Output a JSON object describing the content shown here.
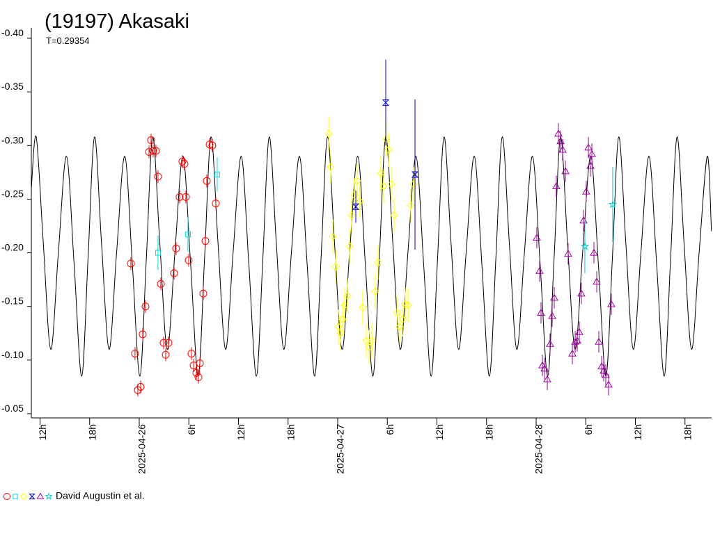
{
  "chart_data": {
    "type": "scatter",
    "title": "(19197) Akasaki",
    "subtitle": "T=0.29354",
    "legend_label": "David Augustin et al.",
    "xlim": [
      10.95,
      93.22
    ],
    "ylim": [
      -0.05,
      -0.4
    ],
    "xticks": [
      {
        "value": 12,
        "label": "12h"
      },
      {
        "value": 18,
        "label": "18h"
      },
      {
        "value": 24,
        "label": "2025-04-26"
      },
      {
        "value": 30,
        "label": "6h"
      },
      {
        "value": 36,
        "label": "12h"
      },
      {
        "value": 42,
        "label": "18h"
      },
      {
        "value": 48,
        "label": "2025-04-27"
      },
      {
        "value": 54,
        "label": "6h"
      },
      {
        "value": 60,
        "label": "12h"
      },
      {
        "value": 66,
        "label": "18h"
      },
      {
        "value": 72,
        "label": "2025-04-28"
      },
      {
        "value": 78,
        "label": "6h"
      },
      {
        "value": 84,
        "label": "12h"
      },
      {
        "value": 90,
        "label": "18h"
      }
    ],
    "yticks": [
      {
        "value": -0.4,
        "label": "-0.40"
      },
      -0.35,
      {
        "value": -0.3,
        "label": "-0.30"
      },
      -0.25,
      {
        "value": -0.2,
        "label": "-0.20"
      },
      -0.15,
      {
        "value": -0.1,
        "label": "-0.10"
      },
      -0.05
    ],
    "model": {
      "color": "#000000",
      "x": [
        10.95,
        11.54,
        12.39,
        13.3,
        14.22,
        15.2,
        16.12,
        17.04,
        17.81,
        18.59,
        19.43,
        20.35,
        21.26,
        22.25,
        23.16,
        24.08,
        24.86,
        25.63,
        26.48,
        27.39,
        28.31,
        29.29,
        30.21,
        31.13,
        31.9,
        32.68,
        33.52,
        34.44,
        35.35,
        36.34,
        37.25,
        38.17,
        38.95,
        39.72,
        40.57,
        41.48,
        42.4,
        43.38,
        44.3,
        45.22,
        45.99,
        46.77,
        47.61,
        48.53,
        49.44,
        50.43,
        51.34,
        52.26,
        53.04,
        53.81,
        54.66,
        55.57,
        56.49,
        57.47,
        58.39,
        59.31,
        60.08,
        60.86,
        61.7,
        62.62,
        63.53,
        64.52,
        65.43,
        66.35,
        67.13,
        67.9,
        68.75,
        69.66,
        70.58,
        71.56,
        72.48,
        73.4,
        74.17,
        74.95,
        75.79,
        76.71,
        77.62,
        78.61,
        79.52,
        80.44,
        81.22,
        81.99,
        82.84,
        83.75,
        84.67,
        85.65,
        86.57,
        87.49,
        88.26,
        89.04,
        89.88,
        90.8,
        91.71,
        92.7,
        93.2
      ],
      "y": [
        -0.26,
        -0.308,
        -0.21,
        -0.11,
        -0.2,
        -0.29,
        -0.19,
        -0.085,
        -0.195,
        -0.308,
        -0.21,
        -0.11,
        -0.2,
        -0.29,
        -0.19,
        -0.085,
        -0.195,
        -0.308,
        -0.21,
        -0.11,
        -0.2,
        -0.29,
        -0.19,
        -0.085,
        -0.195,
        -0.308,
        -0.21,
        -0.11,
        -0.2,
        -0.29,
        -0.19,
        -0.085,
        -0.195,
        -0.308,
        -0.21,
        -0.11,
        -0.2,
        -0.29,
        -0.19,
        -0.085,
        -0.195,
        -0.308,
        -0.21,
        -0.11,
        -0.2,
        -0.29,
        -0.19,
        -0.085,
        -0.195,
        -0.308,
        -0.21,
        -0.11,
        -0.2,
        -0.29,
        -0.19,
        -0.085,
        -0.195,
        -0.308,
        -0.21,
        -0.11,
        -0.2,
        -0.29,
        -0.19,
        -0.085,
        -0.195,
        -0.308,
        -0.21,
        -0.11,
        -0.2,
        -0.29,
        -0.19,
        -0.085,
        -0.195,
        -0.308,
        -0.21,
        -0.11,
        -0.2,
        -0.29,
        -0.19,
        -0.085,
        -0.195,
        -0.308,
        -0.21,
        -0.11,
        -0.2,
        -0.29,
        -0.19,
        -0.085,
        -0.195,
        -0.308,
        -0.21,
        -0.11,
        -0.2,
        -0.29,
        -0.22
      ]
    },
    "series": [
      {
        "marker": "circle",
        "color": "#ff0000",
        "yerr": 0.006,
        "x": [
          22.99,
          23.49,
          23.83,
          24.17,
          24.42,
          24.76,
          25.18,
          25.43,
          25.68,
          26.02,
          26.27,
          26.61,
          26.95,
          27.2,
          27.54,
          28.21,
          28.46,
          28.88,
          29.22,
          29.47,
          29.64,
          29.98,
          30.32,
          30.57,
          30.91,
          31.16,
          31.33,
          31.75,
          32.0,
          32.17,
          32.51,
          32.84,
          33.26
        ],
        "y": [
          -0.19,
          -0.106,
          -0.072,
          -0.075,
          -0.124,
          -0.15,
          -0.294,
          -0.305,
          -0.295,
          -0.295,
          -0.271,
          -0.171,
          -0.116,
          -0.105,
          -0.116,
          -0.181,
          -0.204,
          -0.252,
          -0.285,
          -0.283,
          -0.252,
          -0.193,
          -0.106,
          -0.095,
          -0.088,
          -0.084,
          -0.097,
          -0.162,
          -0.211,
          -0.267,
          -0.301,
          -0.3,
          -0.246
        ]
      },
      {
        "marker": "square",
        "color": "#00dddd",
        "yerr": 0.016,
        "x": [
          26.27,
          29.89,
          33.43
        ],
        "y": [
          -0.2,
          -0.217,
          -0.273
        ]
      },
      {
        "marker": "diamond",
        "color": "#ffff00",
        "yerr": 0.016,
        "x": [
          46.91,
          47.16,
          47.41,
          47.75,
          48.08,
          48.34,
          48.59,
          48.84,
          49.18,
          49.43,
          49.68,
          50.02,
          50.36,
          50.69,
          51.03,
          51.45,
          51.79,
          52.13,
          52.55,
          52.88,
          53.22,
          53.56,
          53.89,
          54.15,
          54.48,
          54.82,
          55.16,
          55.49,
          55.83,
          56.17,
          56.51,
          56.84,
          57.18
        ],
        "y": [
          -0.311,
          -0.28,
          -0.215,
          -0.187,
          -0.131,
          -0.125,
          -0.138,
          -0.151,
          -0.16,
          -0.206,
          -0.235,
          -0.254,
          -0.267,
          -0.248,
          -0.149,
          -0.118,
          -0.112,
          -0.118,
          -0.164,
          -0.191,
          -0.274,
          -0.262,
          -0.306,
          -0.296,
          -0.264,
          -0.235,
          -0.144,
          -0.131,
          -0.138,
          -0.152,
          -0.151,
          -0.244,
          -0.264
        ]
      },
      {
        "marker": "hourglass",
        "color": "#0000cc",
        "yerr": [
          0.015,
          0.04,
          0.07
        ],
        "x": [
          50.19,
          53.81,
          57.35
        ],
        "y": [
          -0.243,
          -0.34,
          -0.273
        ]
      },
      {
        "marker": "triangle",
        "color": "#990099",
        "yerr": 0.01,
        "x": [
          72.08,
          72.42,
          72.59,
          72.76,
          73.01,
          73.35,
          73.68,
          73.94,
          74.19,
          74.44,
          74.69,
          74.95,
          75.2,
          75.54,
          75.87,
          76.38,
          76.72,
          76.97,
          77.22,
          77.47,
          77.73,
          78.06,
          78.32,
          78.57,
          78.74,
          78.99,
          79.33,
          79.58,
          79.92,
          80.17,
          80.42,
          80.76,
          81.09
        ],
        "y": [
          -0.214,
          -0.183,
          -0.144,
          -0.095,
          -0.092,
          -0.082,
          -0.115,
          -0.141,
          -0.158,
          -0.262,
          -0.311,
          -0.304,
          -0.296,
          -0.276,
          -0.199,
          -0.106,
          -0.117,
          -0.118,
          -0.126,
          -0.162,
          -0.23,
          -0.257,
          -0.298,
          -0.281,
          -0.292,
          -0.2,
          -0.173,
          -0.117,
          -0.094,
          -0.09,
          -0.086,
          -0.077,
          -0.152
        ]
      },
      {
        "marker": "star",
        "color": "#00cccc",
        "yerr": [
          0.025,
          0.035
        ],
        "x": [
          77.89,
          81.26
        ],
        "y": [
          -0.206,
          -0.245
        ]
      }
    ]
  }
}
